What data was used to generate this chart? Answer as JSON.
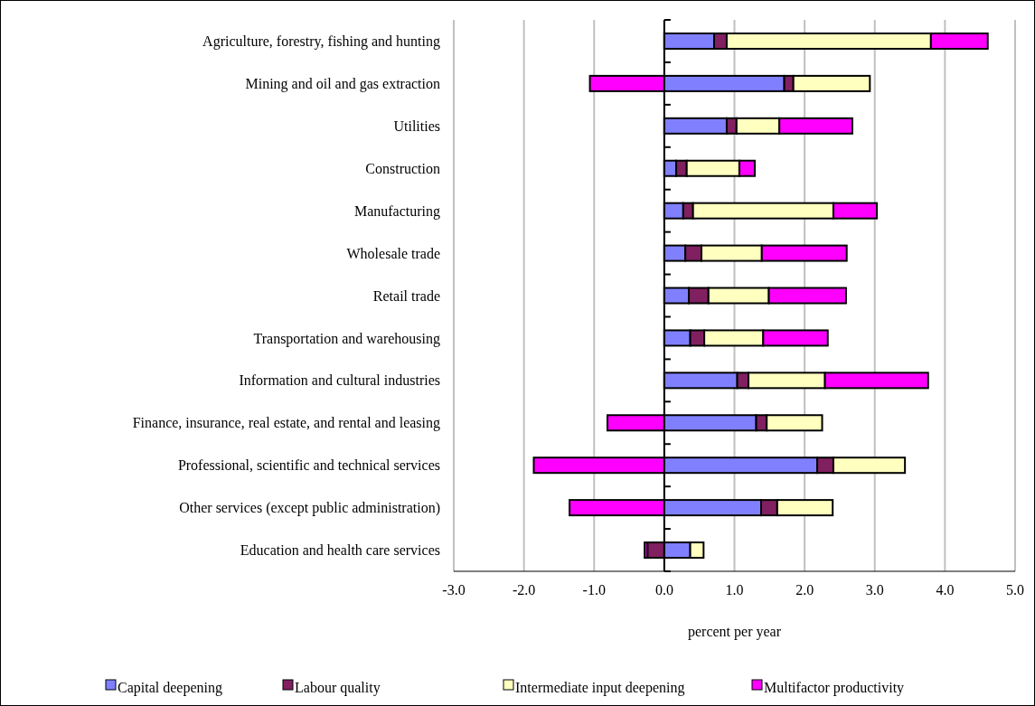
{
  "chart_data": {
    "type": "bar",
    "orientation": "horizontal",
    "stacked": true,
    "xlabel": "percent per year",
    "categories": [
      "Agriculture, forestry, fishing and hunting",
      "Mining and oil and gas extraction",
      "Utilities",
      "Construction",
      "Manufacturing",
      "Wholesale trade",
      "Retail trade",
      "Transportation and warehousing",
      "Information and cultural industries",
      "Finance, insurance, real estate, and rental and leasing",
      "Professional, scientific and technical services",
      "Other services (except public administration)",
      "Education and health care services"
    ],
    "series": [
      {
        "name": "Capital deepening",
        "color": "#8080ff",
        "values": [
          0.71,
          1.71,
          0.89,
          0.17,
          0.27,
          0.3,
          0.35,
          0.37,
          1.04,
          1.31,
          2.18,
          1.38,
          0.37
        ]
      },
      {
        "name": "Labour quality",
        "color": "#802060",
        "values": [
          0.18,
          0.13,
          0.14,
          0.15,
          0.14,
          0.23,
          0.28,
          0.2,
          0.16,
          0.15,
          0.23,
          0.23,
          -0.24
        ]
      },
      {
        "name": "Intermediate input deepening",
        "color": "#ffffc0",
        "values": [
          2.91,
          1.09,
          0.61,
          0.75,
          2.0,
          0.86,
          0.86,
          0.84,
          1.09,
          0.79,
          1.02,
          0.79,
          0.19
        ]
      },
      {
        "name": "Multifactor productivity",
        "color": "#ff00ff",
        "values": [
          0.81,
          -1.06,
          1.04,
          0.22,
          0.62,
          1.21,
          1.1,
          0.92,
          1.47,
          -0.81,
          -1.86,
          -1.35,
          -0.04
        ]
      }
    ],
    "xlim": [
      -3,
      5
    ],
    "xticks": [
      {
        "value": -3,
        "label": "-3.0"
      },
      {
        "value": -2,
        "label": "-2.0"
      },
      {
        "value": -1,
        "label": "-1.0"
      },
      {
        "value": 0,
        "label": "0.0"
      },
      {
        "value": 1,
        "label": "1.0"
      },
      {
        "value": 2,
        "label": "2.0"
      },
      {
        "value": 3,
        "label": "3.0"
      },
      {
        "value": 4,
        "label": "4.0"
      },
      {
        "value": 5,
        "label": "5.0"
      }
    ],
    "grid": "x",
    "legend": "bottom"
  }
}
